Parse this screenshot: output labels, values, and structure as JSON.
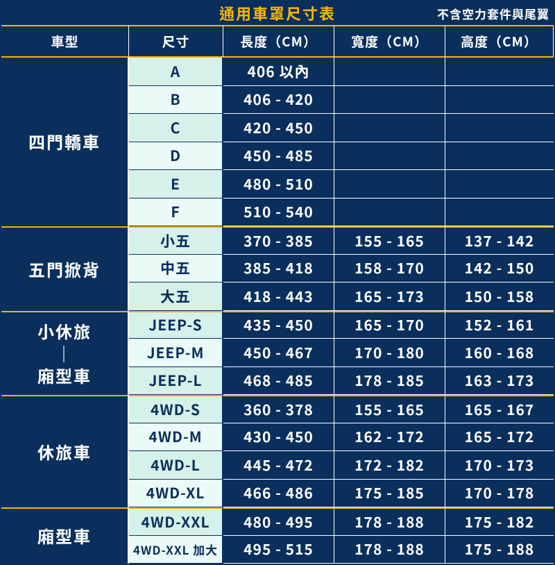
{
  "colors": {
    "navy": "#0a2f5c",
    "gold": "#f7b500",
    "mintA": "#d6f0ea",
    "mintB": "#eafaf6",
    "white": "#ffffff"
  },
  "title": "通用車罩尺寸表",
  "subtitle": "不含空力套件與尾翼",
  "headers": {
    "model": "車型",
    "size": "尺寸",
    "length": "長度（CM）",
    "width": "寬度（CM）",
    "height": "高度（CM）"
  },
  "sections": [
    {
      "category": "四門轎車",
      "rows": [
        {
          "size": "A",
          "length": "406 以內",
          "width": "",
          "height": ""
        },
        {
          "size": "B",
          "length": "406 - 420",
          "width": "",
          "height": ""
        },
        {
          "size": "C",
          "length": "420 - 450",
          "width": "",
          "height": ""
        },
        {
          "size": "D",
          "length": "450 - 485",
          "width": "",
          "height": ""
        },
        {
          "size": "E",
          "length": "480 - 510",
          "width": "",
          "height": ""
        },
        {
          "size": "F",
          "length": "510 - 540",
          "width": "",
          "height": ""
        }
      ]
    },
    {
      "category": "五門掀背",
      "rows": [
        {
          "size": "小五",
          "length": "370 - 385",
          "width": "155 - 165",
          "height": "137 - 142"
        },
        {
          "size": "中五",
          "length": "385 - 418",
          "width": "158 - 170",
          "height": "142 - 150"
        },
        {
          "size": "大五",
          "length": "418 - 443",
          "width": "165 - 173",
          "height": "150 - 158"
        }
      ]
    },
    {
      "category": "小休旅\n｜\n廂型車",
      "rows": [
        {
          "size": "JEEP-S",
          "length": "435 - 450",
          "width": "165 - 170",
          "height": "152 - 161"
        },
        {
          "size": "JEEP-M",
          "length": "450 - 467",
          "width": "170 - 180",
          "height": "160 - 168"
        },
        {
          "size": "JEEP-L",
          "length": "468 - 485",
          "width": "178 - 185",
          "height": "163 - 173"
        }
      ]
    },
    {
      "category": "休旅車",
      "rows": [
        {
          "size": "4WD-S",
          "length": "360 - 378",
          "width": "155 - 165",
          "height": "165 - 167"
        },
        {
          "size": "4WD-M",
          "length": "430 - 450",
          "width": "162 - 172",
          "height": "165 - 172"
        },
        {
          "size": "4WD-L",
          "length": "445 - 472",
          "width": "172 - 182",
          "height": "170 - 173"
        },
        {
          "size": "4WD-XL",
          "length": "466 - 486",
          "width": "175 - 185",
          "height": "170 - 178"
        }
      ]
    },
    {
      "category": "廂型車",
      "rows": [
        {
          "size": "4WD-XXL",
          "length": "480 - 495",
          "width": "178 - 188",
          "height": "175 - 182"
        },
        {
          "size": "4WD-XXL 加大",
          "length": "495 - 515",
          "width": "178 - 188",
          "height": "175 - 188"
        }
      ]
    }
  ]
}
